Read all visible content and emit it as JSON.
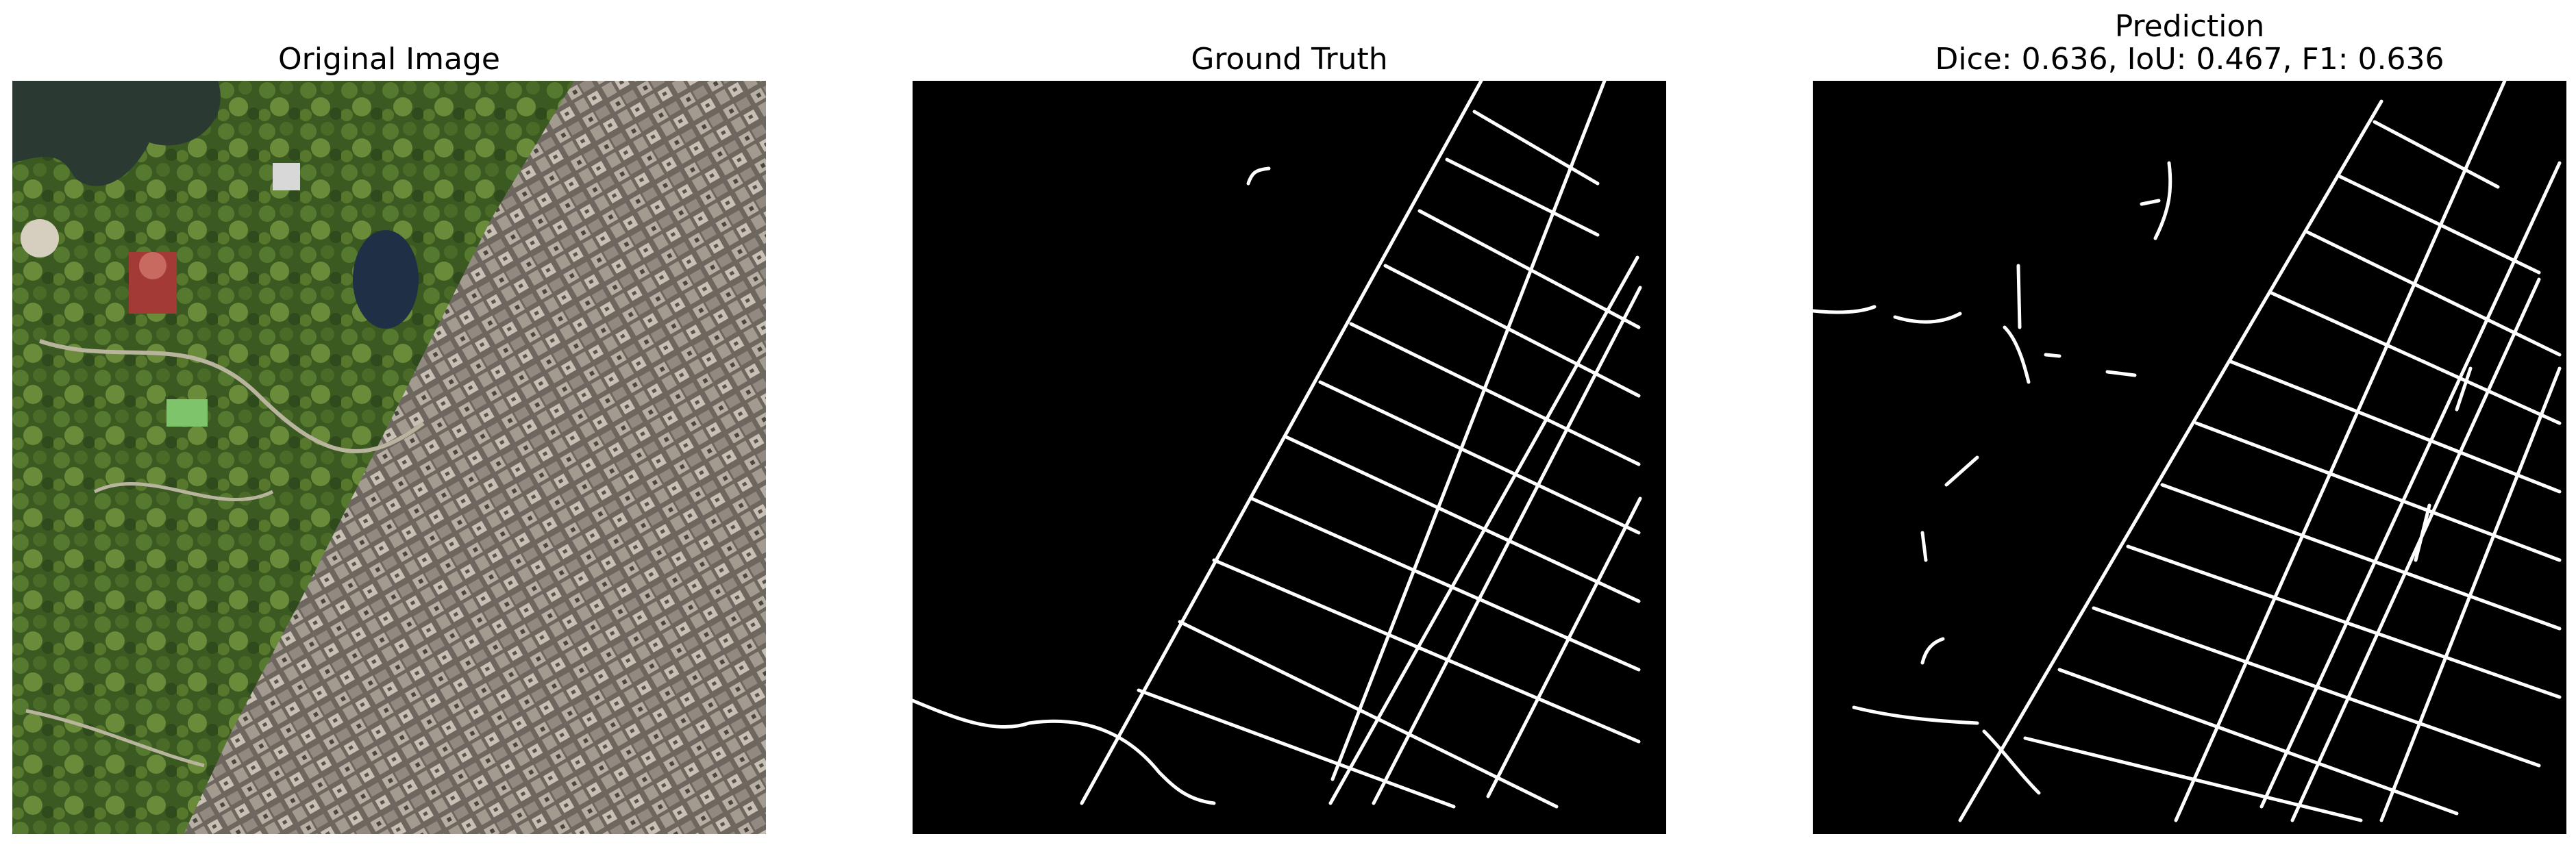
{
  "figure": {
    "panels": [
      {
        "title": "Original Image",
        "kind": "aerial-photo"
      },
      {
        "title": "Ground Truth",
        "kind": "road-mask"
      },
      {
        "title_line1": "Prediction",
        "title_line2": "Dice: 0.636, IoU: 0.467, F1: 0.636",
        "kind": "predicted-road-mask"
      }
    ],
    "metrics": {
      "dice": 0.636,
      "iou": 0.467,
      "f1": 0.636
    },
    "colors": {
      "background": "#ffffff",
      "mask_background": "#000000",
      "mask_foreground": "#ffffff",
      "park_green": "#3c5a22",
      "water": "#2a3a33",
      "buildings": "#8a8278"
    }
  }
}
